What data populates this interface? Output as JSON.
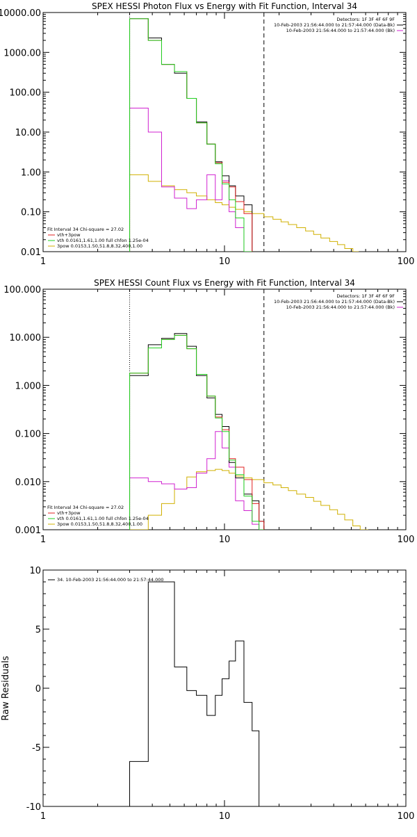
{
  "colors": {
    "data": "#000000",
    "total": "#e02020",
    "thermal": "#20d020",
    "power_law": "#d0b000",
    "background": "#d020d0",
    "axis": "#000000"
  },
  "chart_data": [
    {
      "type": "line",
      "title": "SPEX HESSI Photon Flux vs Energy with Fit Function, Interval 34",
      "xlabel": "",
      "ylabel": "",
      "xscale": "log",
      "yscale": "log",
      "xlim": [
        1,
        100
      ],
      "ylim": [
        0.01,
        10000
      ],
      "xticks": [
        1,
        10,
        100
      ],
      "xtick_labels": [
        "1",
        "10",
        "100"
      ],
      "yticks": [
        0.01,
        0.1,
        1,
        10,
        100,
        1000,
        10000
      ],
      "ytick_labels": [
        "0.01",
        "0.10",
        "1.00",
        "10.00",
        "100.00",
        "1000.00",
        "10000.00"
      ],
      "fit_range": [
        3.0,
        16.5
      ],
      "legend_right": [
        {
          "text": "Detectors: 1F 3F 4F 6F 9F",
          "color": "#000000"
        },
        {
          "text": "10-Feb-2003 21:56:44.000 to 21:57:44.000 (Data-Bk)",
          "color": "#000000"
        },
        {
          "text": "10-Feb-2003 21:56:44.000 to 21:57:44.000 (Bk)",
          "color": "#d020d0"
        }
      ],
      "legend_left": [
        {
          "text": "Fit Interval 34   Chi-square = 27.02",
          "color": "#000000"
        },
        {
          "text": "vth+3pow",
          "color": "#e02020"
        },
        {
          "text": "vth 0.0161,1.61,1.00  full chfon 1.25e-04",
          "color": "#20d020"
        },
        {
          "text": "3pow 0.0153,1.50,51.8,8.32,400,1.00",
          "color": "#d0b000"
        }
      ],
      "edges": [
        3.0,
        3.8,
        4.5,
        5.3,
        6.2,
        7.0,
        8.0,
        8.9,
        9.7,
        10.6,
        11.5,
        12.8,
        14.2,
        15.5,
        16.5
      ],
      "series": [
        {
          "key": "data",
          "values": [
            7000,
            2300,
            500,
            300,
            70,
            18,
            5.0,
            1.8,
            0.8,
            0.45,
            0.25,
            0.15
          ]
        },
        {
          "key": "total",
          "values": [
            7000,
            2000,
            500,
            330,
            70,
            17,
            5.0,
            1.7,
            0.55,
            0.42,
            0.18,
            0.09
          ]
        },
        {
          "key": "thermal",
          "values": [
            7000,
            2000,
            500,
            330,
            70,
            17,
            5.0,
            1.6,
            0.5,
            0.2,
            0.07,
            0.01
          ]
        },
        {
          "key": "background",
          "values": [
            40,
            10,
            0.42,
            0.22,
            0.12,
            0.2,
            0.85,
            0.2,
            0.6,
            0.1,
            0.04,
            0.01
          ]
        },
        {
          "key": "power_law",
          "x_range": [
            3.0,
            55
          ],
          "start": 0.85,
          "stair": [
            [
              3.0,
              0.85
            ],
            [
              3.8,
              0.58
            ],
            [
              4.5,
              0.45
            ],
            [
              5.3,
              0.36
            ],
            [
              6.2,
              0.3
            ],
            [
              7.0,
              0.25
            ],
            [
              8.0,
              0.2
            ],
            [
              8.9,
              0.17
            ],
            [
              9.7,
              0.15
            ],
            [
              10.6,
              0.13
            ],
            [
              11.5,
              0.115
            ],
            [
              12.8,
              0.1
            ],
            [
              14.2,
              0.09
            ],
            [
              16.5,
              0.075
            ],
            [
              18.5,
              0.065
            ],
            [
              20.5,
              0.056
            ],
            [
              22.5,
              0.048
            ],
            [
              25,
              0.04
            ],
            [
              28,
              0.033
            ],
            [
              31,
              0.027
            ],
            [
              34,
              0.022
            ],
            [
              38,
              0.018
            ],
            [
              42,
              0.015
            ],
            [
              46,
              0.012
            ],
            [
              51,
              0.01
            ],
            [
              55,
              0.01
            ]
          ]
        }
      ]
    },
    {
      "type": "line",
      "title": "SPEX HESSI Count Flux vs Energy with Fit Function, Interval 34",
      "xlabel": "",
      "ylabel": "",
      "xscale": "log",
      "yscale": "log",
      "xlim": [
        1,
        100
      ],
      "ylim": [
        0.001,
        100
      ],
      "xticks": [
        1,
        10,
        100
      ],
      "xtick_labels": [
        "1",
        "10",
        "100"
      ],
      "yticks": [
        0.001,
        0.01,
        0.1,
        1,
        10,
        100
      ],
      "ytick_labels": [
        "0.001",
        "0.010",
        "0.100",
        "1.000",
        "10.000",
        "100.000"
      ],
      "fit_range": [
        3.0,
        16.5
      ],
      "legend_right": [
        {
          "text": "Detectors: 1F 3F 4F 6F 9F",
          "color": "#000000"
        },
        {
          "text": "10-Feb-2003 21:56:44.000 to 21:57:44.000 (Data-Bk)",
          "color": "#000000"
        },
        {
          "text": "10-Feb-2003 21:56:44.000 to 21:57:44.000 (Bk)",
          "color": "#d020d0"
        }
      ],
      "legend_left": [
        {
          "text": "Fit Interval 34   Chi-square = 27.02",
          "color": "#000000"
        },
        {
          "text": "vth+3pow",
          "color": "#e02020"
        },
        {
          "text": "vth 0.0161,1.61,1.00  full chfon 1.25e-04",
          "color": "#20d020"
        },
        {
          "text": "3pow 0.0153,1.50,51.8,8.32,400,1.00",
          "color": "#d0b000"
        }
      ],
      "edges": [
        3.0,
        3.8,
        4.5,
        5.3,
        6.2,
        7.0,
        8.0,
        8.9,
        9.7,
        10.6,
        11.5,
        12.8,
        14.2,
        15.5,
        16.5
      ],
      "series": [
        {
          "key": "data",
          "values": [
            1.6,
            7.0,
            9.5,
            12.0,
            6.5,
            1.6,
            0.55,
            0.25,
            0.14,
            0.025,
            0.012,
            0.0055,
            0.004,
            0.0015
          ]
        },
        {
          "key": "total",
          "values": [
            1.8,
            6.0,
            9.0,
            11.0,
            5.8,
            1.7,
            0.6,
            0.22,
            0.12,
            0.03,
            0.02,
            0.011,
            0.0035,
            0.0015
          ]
        },
        {
          "key": "thermal",
          "values": [
            1.8,
            6.0,
            9.0,
            11.0,
            5.8,
            1.7,
            0.6,
            0.21,
            0.11,
            0.028,
            0.014,
            0.005,
            0.0015,
            0.001
          ]
        },
        {
          "key": "background",
          "values": [
            0.012,
            0.01,
            0.009,
            0.007,
            0.0075,
            0.015,
            0.03,
            0.11,
            0.05,
            0.02,
            0.004,
            0.0025,
            0.0013,
            0.001
          ]
        },
        {
          "key": "power_law",
          "x_range": [
            3.0,
            62
          ],
          "start": 0.001,
          "stair": [
            [
              3.0,
              0.001
            ],
            [
              3.8,
              0.002
            ],
            [
              4.5,
              0.0035
            ],
            [
              5.3,
              0.007
            ],
            [
              6.2,
              0.0125
            ],
            [
              7.0,
              0.016
            ],
            [
              8.0,
              0.017
            ],
            [
              8.9,
              0.018
            ],
            [
              9.7,
              0.017
            ],
            [
              10.6,
              0.015
            ],
            [
              11.5,
              0.013
            ],
            [
              12.8,
              0.012
            ],
            [
              14.2,
              0.011
            ],
            [
              16.5,
              0.0095
            ],
            [
              18.5,
              0.0085
            ],
            [
              20.5,
              0.0075
            ],
            [
              22.5,
              0.0065
            ],
            [
              25,
              0.0055
            ],
            [
              28,
              0.0047
            ],
            [
              31,
              0.0039
            ],
            [
              34,
              0.0032
            ],
            [
              38,
              0.0026
            ],
            [
              42,
              0.0021
            ],
            [
              46,
              0.0016
            ],
            [
              51,
              0.0012
            ],
            [
              56,
              0.001
            ],
            [
              62,
              0.001
            ]
          ]
        }
      ]
    },
    {
      "type": "line",
      "title": "",
      "xlabel": "",
      "ylabel": "Raw Residuals",
      "xscale": "log",
      "yscale": "linear",
      "xlim": [
        1,
        100
      ],
      "ylim": [
        -10,
        10
      ],
      "xticks": [
        1,
        10,
        100
      ],
      "xtick_labels": [
        "1",
        "10",
        "100"
      ],
      "yticks": [
        -10,
        -5,
        0,
        5,
        10
      ],
      "ytick_labels": [
        "-10",
        "-5",
        "0",
        "5",
        "10"
      ],
      "legend_left": [
        {
          "text": "34. 10-Feb-2003 21:56:44.000 to 21:57:44.000",
          "color": "#000000"
        }
      ],
      "edges": [
        3.0,
        3.8,
        4.5,
        5.3,
        6.2,
        7.0,
        8.0,
        8.9,
        9.7,
        10.6,
        11.5,
        12.8,
        14.2,
        15.5,
        16.5
      ],
      "series": [
        {
          "key": "data",
          "values": [
            -6.2,
            9.0,
            9.0,
            1.8,
            -0.2,
            -0.6,
            -2.3,
            -0.6,
            0.8,
            2.3,
            4.0,
            -1.2,
            -3.6,
            -10
          ]
        }
      ]
    }
  ]
}
